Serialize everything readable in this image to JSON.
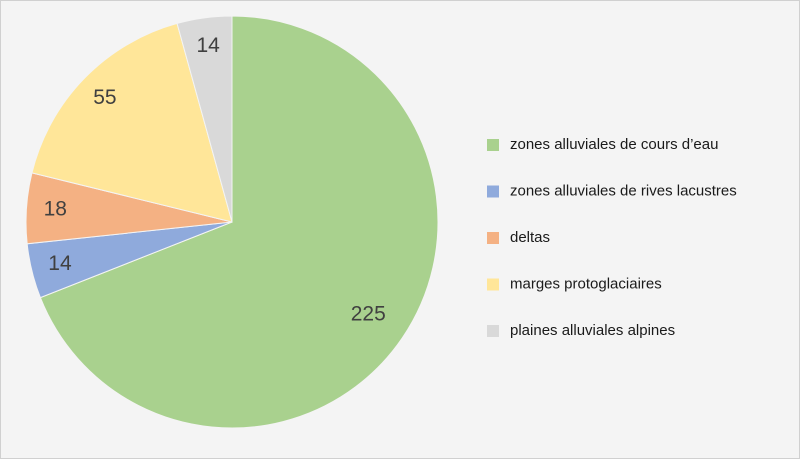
{
  "chart_data": {
    "type": "pie",
    "categories": [
      "zones alluviales de cours d’eau",
      "zones alluviales de rives lacustres",
      "deltas",
      "marges protoglaciaires",
      "plaines alluviales alpines"
    ],
    "values": [
      225,
      14,
      18,
      55,
      14
    ],
    "colors": [
      "#a9d18e",
      "#8faadc",
      "#f4b183",
      "#ffe699",
      "#d9d9d9"
    ],
    "legend": "right"
  }
}
